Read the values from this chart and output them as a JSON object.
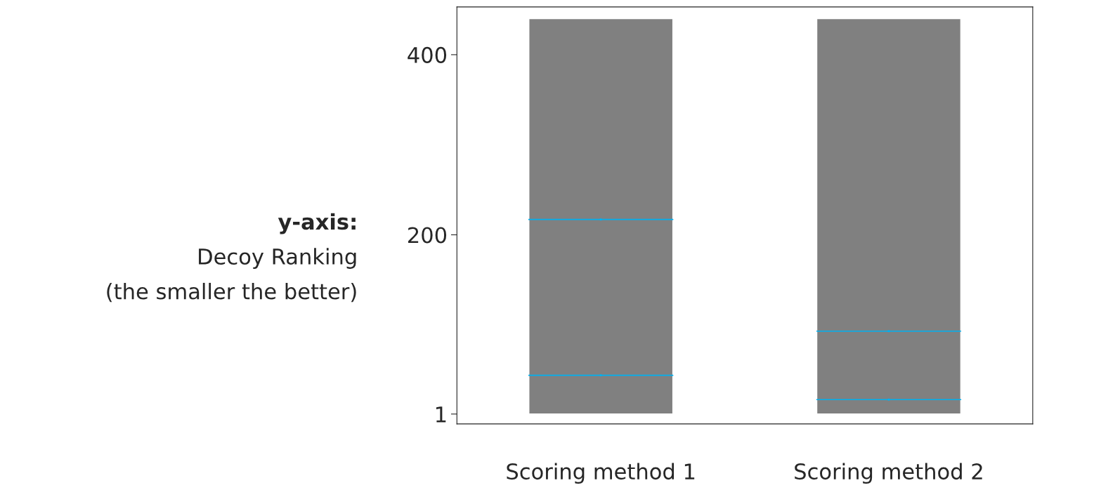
{
  "chart_data": {
    "type": "bar",
    "ylabel": "y-axis:\nDecoy Ranking\n(the smaller the better)",
    "categories": [
      "Scoring method 1",
      "Scoring method 2"
    ],
    "series": [
      {
        "type": "bar",
        "color": "#808080",
        "values": [
          439,
          439
        ],
        "base": [
          1,
          1
        ]
      },
      {
        "type": "scatter",
        "color": "#00b0f0",
        "values": [
          217,
          93
        ]
      },
      {
        "type": "scatter",
        "color": "#00b0f0",
        "values": [
          44,
          17
        ]
      }
    ],
    "ylim": [
      -10,
      453
    ],
    "yticks": [
      1,
      200,
      400
    ],
    "grid": false,
    "legend": false
  }
}
